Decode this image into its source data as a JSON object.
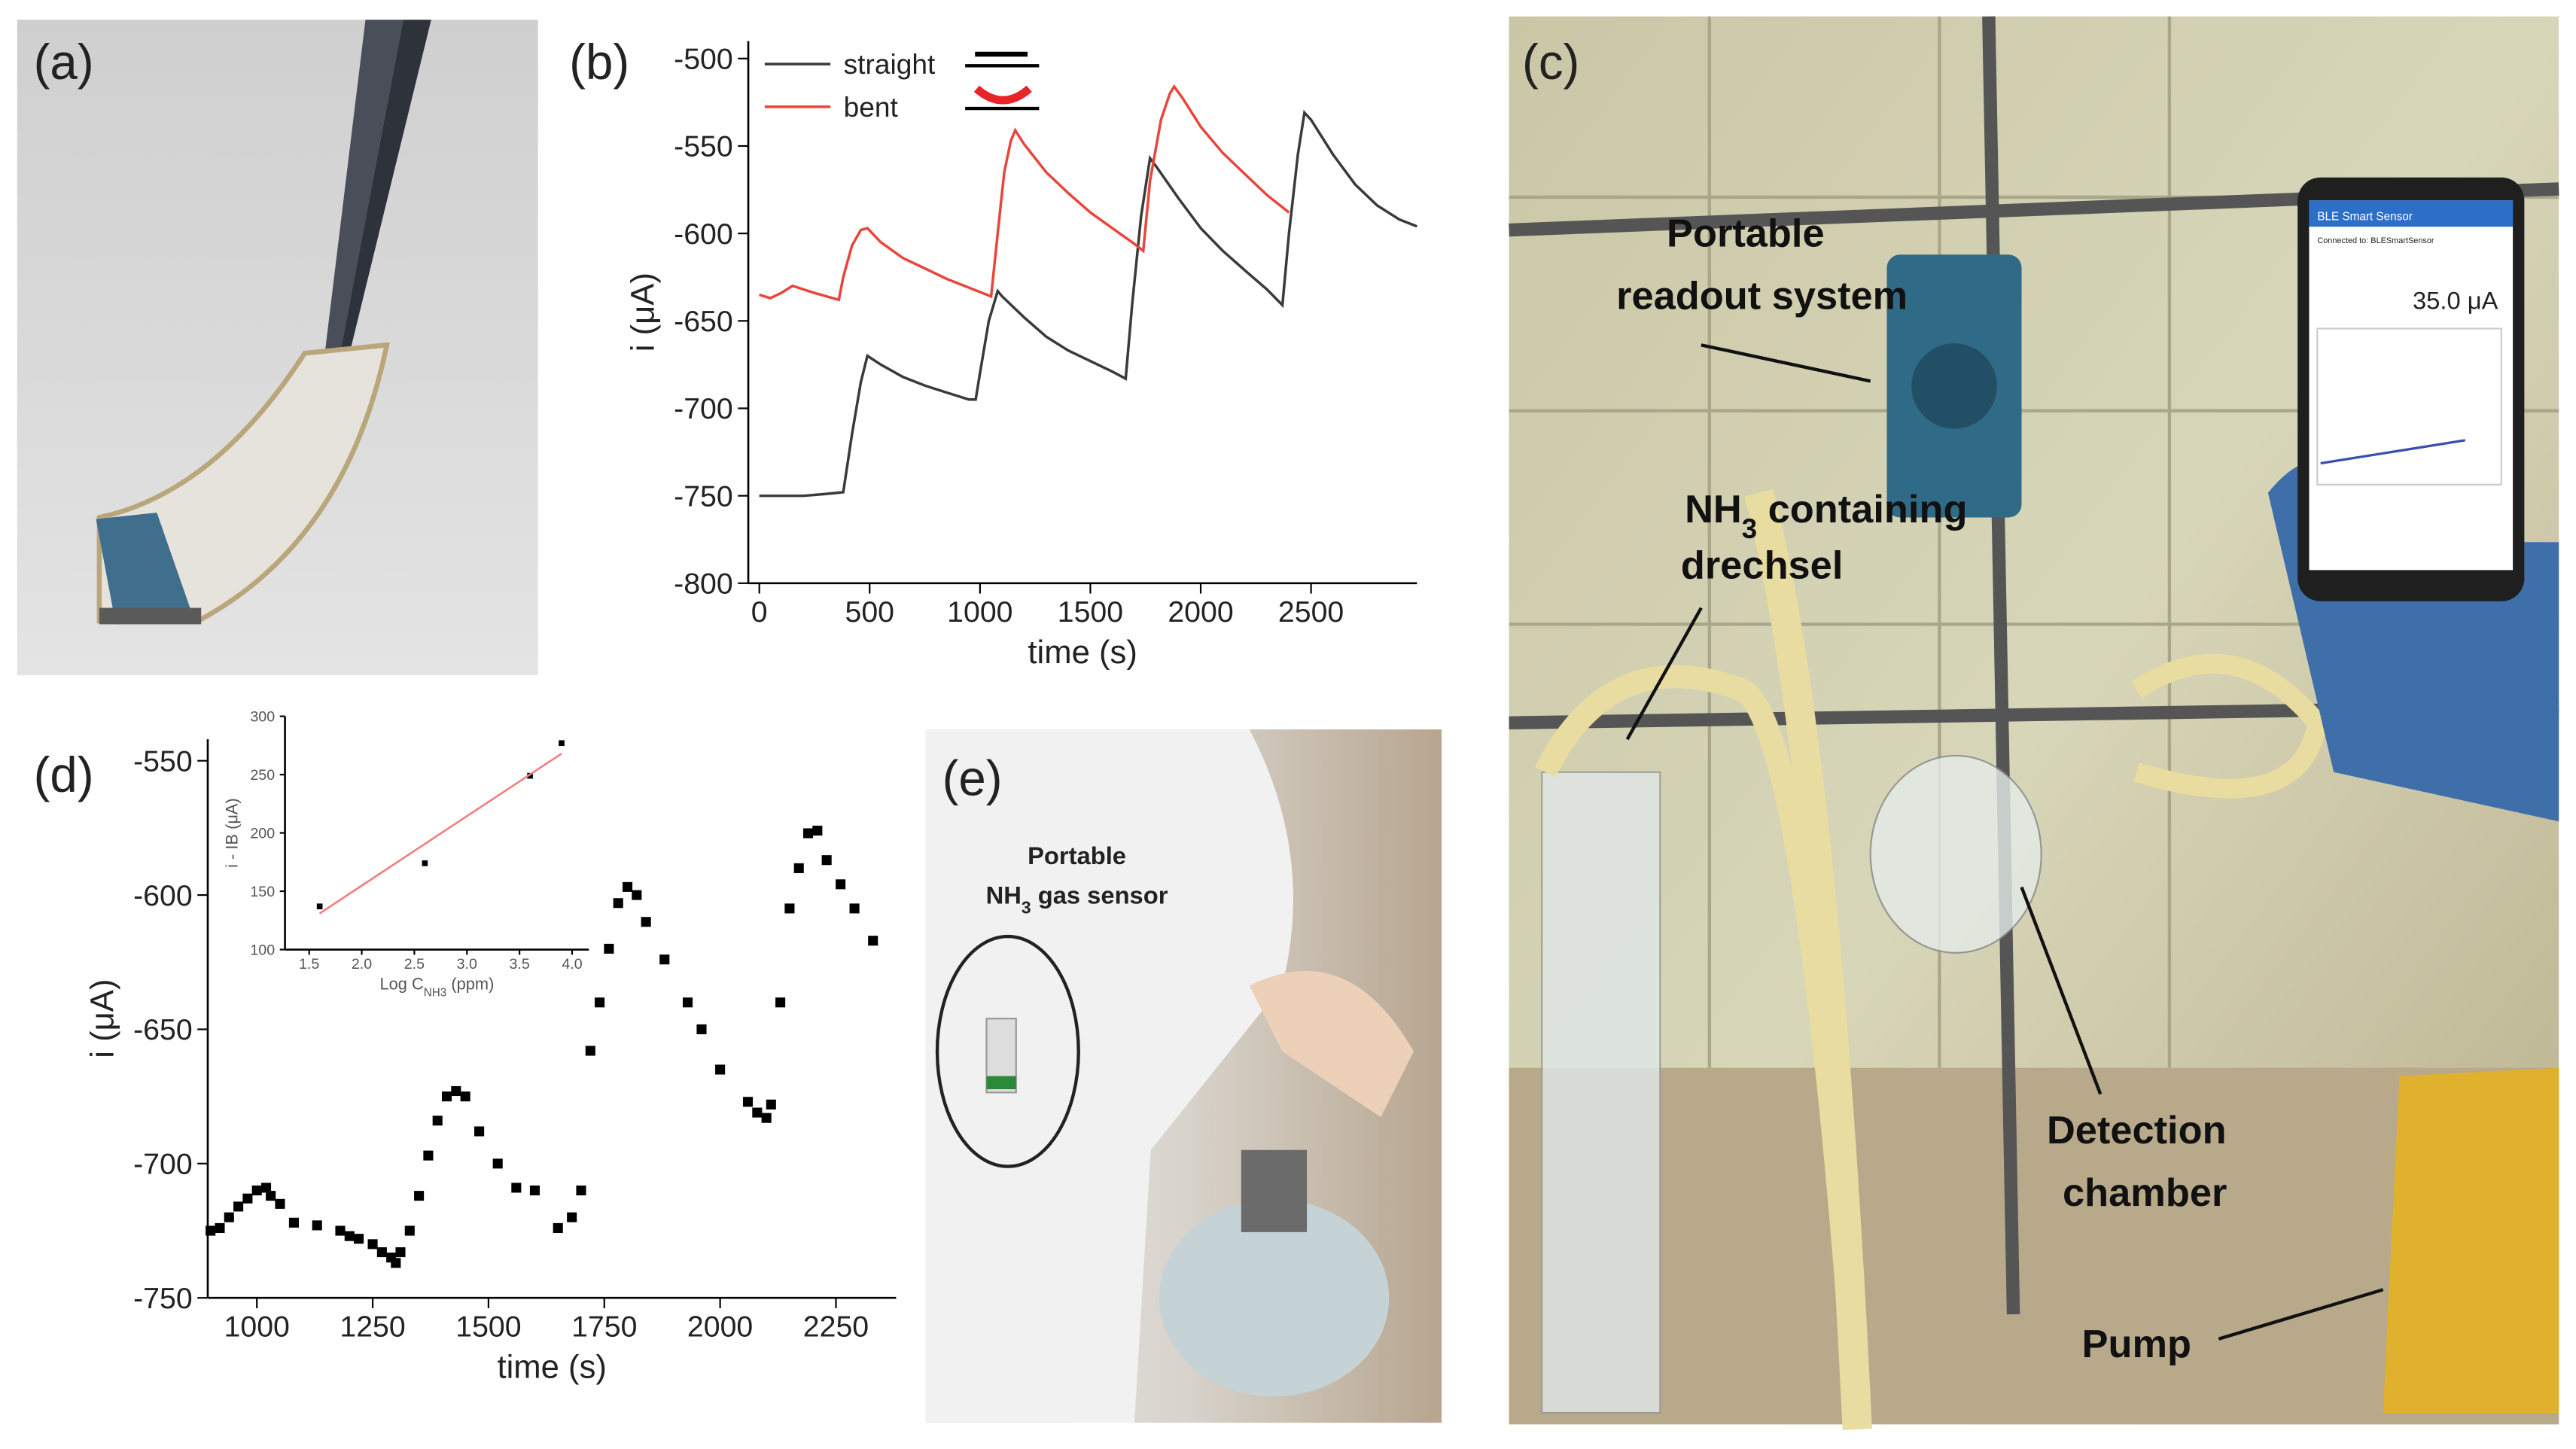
{
  "panel_labels": [
    "(a)",
    "(b)",
    "(c)",
    "(d)",
    "(e)"
  ],
  "panel_c": {
    "readout": [
      "Portable",
      "readout system"
    ],
    "drechsel": [
      {
        "text": "NH"
      },
      {
        "text": "3",
        "sub": true
      },
      {
        "text": " containing"
      }
    ],
    "drechsel2": "drechsel",
    "chamber": [
      "Detection",
      "chamber"
    ],
    "pump": "Pump",
    "phone_title": "BLE Smart Sensor",
    "phone_subtitle": "Connected to: BLESmartSensor",
    "phone_value": "35.0 μA"
  },
  "panel_e": {
    "sensor1": "Portable",
    "sensor2": [
      {
        "text": "NH"
      },
      {
        "text": "3",
        "sub": true
      },
      {
        "text": " gas sensor"
      }
    ]
  },
  "chart_data": [
    {
      "type": "line",
      "xlabel": "time (s)",
      "ylabel": "i (μA)",
      "legend": "upper left",
      "xlim": [
        -50,
        2980
      ],
      "ylim": [
        -800,
        -490
      ],
      "xticks": [
        0,
        500,
        1000,
        1500,
        2000,
        2500
      ],
      "yticks": [
        -500,
        -550,
        -600,
        -650,
        -700,
        -750,
        -800
      ],
      "series": [
        {
          "name": "straight",
          "color": "#3a3a3a",
          "x": [
            0,
            100,
            200,
            300,
            380,
            420,
            460,
            490,
            550,
            650,
            750,
            850,
            950,
            980,
            1000,
            1040,
            1080,
            1100,
            1200,
            1300,
            1400,
            1500,
            1600,
            1660,
            1690,
            1730,
            1770,
            1800,
            1900,
            2000,
            2100,
            2200,
            2300,
            2370,
            2400,
            2440,
            2470,
            2500,
            2600,
            2700,
            2800,
            2900,
            2980
          ],
          "values": [
            -750,
            -750,
            -750,
            -749,
            -748,
            -715,
            -685,
            -670,
            -675,
            -682,
            -687,
            -691,
            -695,
            -695,
            -680,
            -650,
            -633,
            -636,
            -648,
            -659,
            -667,
            -673,
            -679,
            -683,
            -640,
            -590,
            -557,
            -562,
            -580,
            -597,
            -610,
            -621,
            -632,
            -641,
            -600,
            -555,
            -531,
            -535,
            -555,
            -572,
            -584,
            -592,
            -596
          ]
        },
        {
          "name": "bent",
          "color": "#e8463c",
          "x": [
            0,
            50,
            100,
            150,
            250,
            360,
            380,
            420,
            460,
            490,
            550,
            650,
            750,
            850,
            950,
            1050,
            1080,
            1110,
            1140,
            1160,
            1200,
            1300,
            1400,
            1500,
            1600,
            1700,
            1740,
            1770,
            1820,
            1860,
            1880,
            1920,
            2000,
            2100,
            2200,
            2300,
            2400
          ],
          "values": [
            -635,
            -637,
            -634,
            -630,
            -634,
            -638,
            -625,
            -607,
            -598,
            -597,
            -605,
            -614,
            -620,
            -626,
            -631,
            -636,
            -600,
            -565,
            -547,
            -541,
            -549,
            -565,
            -577,
            -588,
            -597,
            -606,
            -610,
            -570,
            -535,
            -520,
            -516,
            -523,
            -539,
            -554,
            -566,
            -578,
            -588
          ]
        }
      ]
    },
    {
      "type": "scatter",
      "xlabel": "time (s)",
      "ylabel": "i (μA)",
      "xlim": [
        894,
        2380
      ],
      "ylim": [
        -750,
        -542
      ],
      "xticks": [
        1000,
        1250,
        1500,
        1750,
        2000,
        2250
      ],
      "yticks": [
        -550,
        -600,
        -650,
        -700,
        -750
      ],
      "series": [
        {
          "color": "#000000",
          "x": [
            900,
            920,
            940,
            960,
            980,
            1000,
            1020,
            1030,
            1050,
            1080,
            1130,
            1180,
            1200,
            1220,
            1250,
            1270,
            1290,
            1300,
            1310,
            1330,
            1350,
            1370,
            1390,
            1410,
            1430,
            1450,
            1480,
            1520,
            1560,
            1600,
            1650,
            1680,
            1700,
            1720,
            1740,
            1760,
            1780,
            1800,
            1820,
            1840,
            1880,
            1930,
            1960,
            2000,
            2060,
            2080,
            2100,
            2110,
            2130,
            2150,
            2170,
            2190,
            2210,
            2230,
            2260,
            2290,
            2330
          ],
          "values": [
            -725,
            -724,
            -720,
            -716,
            -713,
            -710,
            -709,
            -712,
            -715,
            -722,
            -723,
            -725,
            -727,
            -728,
            -730,
            -733,
            -735,
            -737,
            -733,
            -725,
            -712,
            -697,
            -684,
            -675,
            -673,
            -675,
            -688,
            -700,
            -709,
            -710,
            -724,
            -720,
            -710,
            -658,
            -640,
            -620,
            -603,
            -597,
            -600,
            -610,
            -624,
            -640,
            -650,
            -665,
            -677,
            -681,
            -683,
            -678,
            -640,
            -605,
            -590,
            -577,
            -576,
            -587,
            -596,
            -605,
            -617
          ]
        }
      ]
    },
    {
      "type": "scatter",
      "ylabel": "i - IB (μA)",
      "xlabel": [
        {
          "text": "Log C"
        },
        {
          "text": "NH3",
          "sub": true
        },
        {
          "text": " (ppm)"
        }
      ],
      "xlim": [
        1.27,
        4.16
      ],
      "ylim": [
        100,
        300
      ],
      "xticks": [
        {
          "value": 1.5,
          "label": "1.5"
        },
        {
          "value": 2,
          "label": "2.0"
        },
        {
          "value": 2.5,
          "label": "2.5"
        },
        {
          "value": 3,
          "label": "3.0"
        },
        {
          "value": 3.5,
          "label": "3.5"
        },
        {
          "value": 4,
          "label": "4.0"
        }
      ],
      "yticks": [
        100,
        150,
        200,
        250,
        300
      ],
      "series": [
        {
          "color": "#000000",
          "x": [
            1.6,
            2.6,
            3.6,
            3.9
          ],
          "values": [
            137,
            174,
            249,
            277
          ]
        },
        {
          "color": "#f08080",
          "mode": "line",
          "x": [
            1.6,
            3.9
          ],
          "values": [
            131,
            268
          ]
        }
      ]
    }
  ]
}
